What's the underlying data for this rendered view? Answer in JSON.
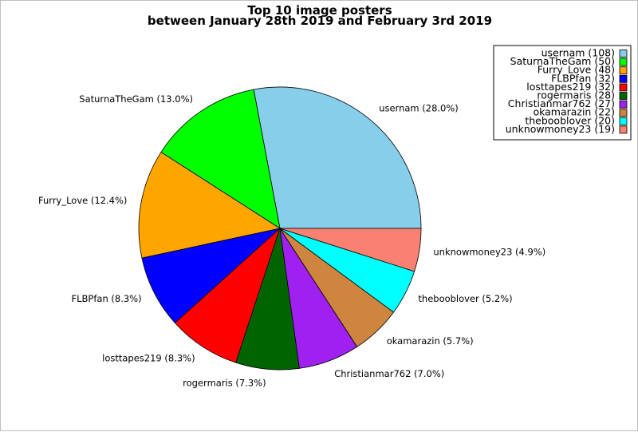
{
  "chart_data": {
    "type": "pie",
    "title": "Top 10 image posters",
    "subtitle": "between January 28th 2019 and February 3rd 2019",
    "legend_position": "top-right",
    "start_angle_deg": 0,
    "direction": "counterclockwise",
    "slices": [
      {
        "label": "usernam",
        "value": 108,
        "percent": "28.0%",
        "color": "#87CEEB"
      },
      {
        "label": "SaturnaTheGam",
        "value": 50,
        "percent": "13.0%",
        "color": "#00FF00"
      },
      {
        "label": "Furry_Love",
        "value": 48,
        "percent": "12.4%",
        "color": "#FFA500"
      },
      {
        "label": "FLBPfan",
        "value": 32,
        "percent": "8.3%",
        "color": "#0000FF"
      },
      {
        "label": "losttapes219",
        "value": 32,
        "percent": "8.3%",
        "color": "#FF0000"
      },
      {
        "label": "rogermaris",
        "value": 28,
        "percent": "7.3%",
        "color": "#006400"
      },
      {
        "label": "Christianmar762",
        "value": 27,
        "percent": "7.0%",
        "color": "#A020F0"
      },
      {
        "label": "okamarazin",
        "value": 22,
        "percent": "5.7%",
        "color": "#CD853F"
      },
      {
        "label": "thebooblover",
        "value": 20,
        "percent": "5.2%",
        "color": "#00FFFF"
      },
      {
        "label": "unknowmoney23",
        "value": 19,
        "percent": "4.9%",
        "color": "#FA8072"
      }
    ]
  }
}
